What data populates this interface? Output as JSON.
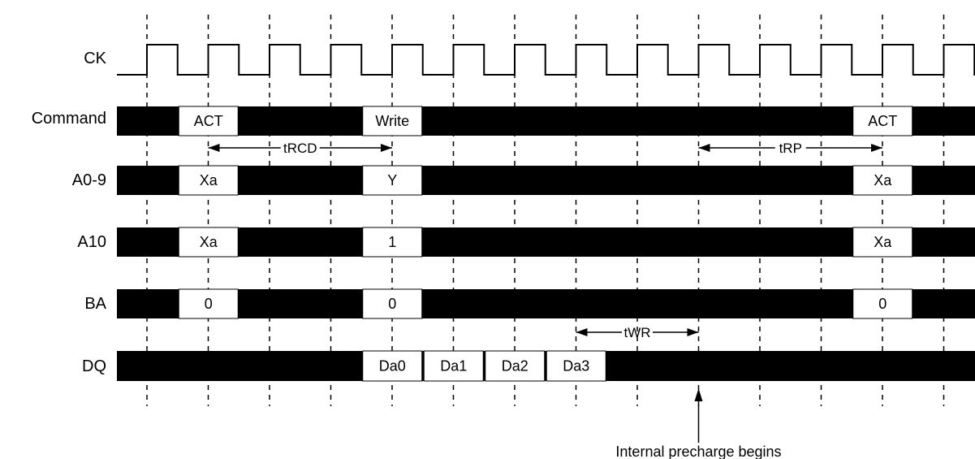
{
  "signals": [
    {
      "label": "CK"
    },
    {
      "label": "Command",
      "boxes": [
        {
          "text": "ACT",
          "start": 1
        },
        {
          "text": "Write",
          "start": 4
        },
        {
          "text": "ACT",
          "start": 12
        }
      ]
    },
    {
      "label": "A0-9",
      "boxes": [
        {
          "text": "Xa",
          "start": 1
        },
        {
          "text": "Y",
          "start": 4
        },
        {
          "text": "Xa",
          "start": 12
        }
      ]
    },
    {
      "label": "A10",
      "boxes": [
        {
          "text": "Xa",
          "start": 1
        },
        {
          "text": "1",
          "start": 4
        },
        {
          "text": "Xa",
          "start": 12
        }
      ]
    },
    {
      "label": "BA",
      "boxes": [
        {
          "text": "0",
          "start": 1
        },
        {
          "text": "0",
          "start": 4
        },
        {
          "text": "0",
          "start": 12
        }
      ]
    },
    {
      "label": "DQ",
      "boxes": [
        {
          "text": "Da0",
          "start": 4
        },
        {
          "text": "Da1",
          "start": 5
        },
        {
          "text": "Da2",
          "start": 6
        },
        {
          "text": "Da3",
          "start": 7
        }
      ]
    }
  ],
  "timings": [
    {
      "label": "tRCD",
      "from": 1,
      "to": 4
    },
    {
      "label": "tRP",
      "from": 9,
      "to": 12
    },
    {
      "label": "tWR",
      "from": 7,
      "to": 9
    }
  ],
  "annotation": {
    "text": "Internal precharge begins",
    "at": 9
  }
}
